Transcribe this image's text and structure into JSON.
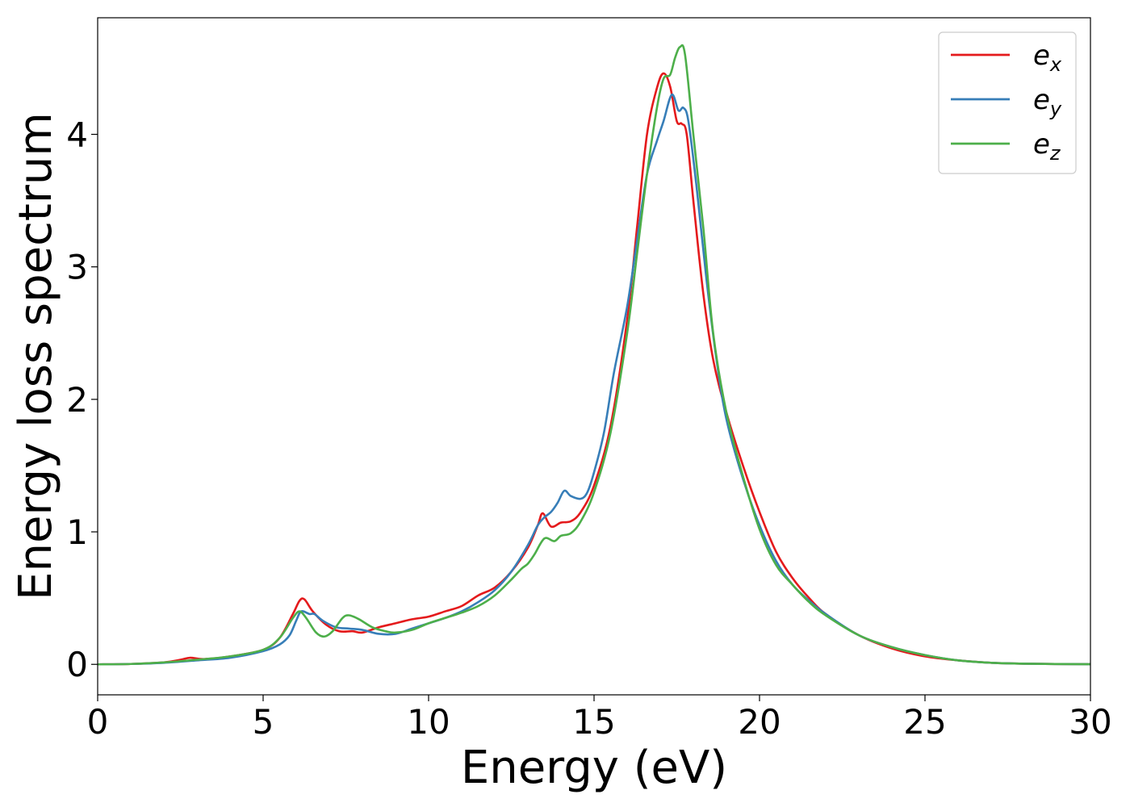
{
  "chart_data": {
    "type": "line",
    "xlabel": "Energy (eV)",
    "ylabel": "Energy loss spectrum",
    "xlim": [
      0,
      30
    ],
    "ylim": [
      -0.23,
      4.88
    ],
    "xticks": [
      0,
      5,
      10,
      15,
      20,
      25,
      30
    ],
    "xtick_labels": [
      "0",
      "5",
      "10",
      "15",
      "20",
      "25",
      "30"
    ],
    "yticks": [
      0,
      1,
      2,
      3,
      4
    ],
    "ytick_labels": [
      "0",
      "1",
      "2",
      "3",
      "4"
    ],
    "grid": false,
    "legend_position": "top-right",
    "series": [
      {
        "name": "e",
        "name_sub": "x",
        "color": "#e41a1c",
        "points": [
          [
            0,
            0
          ],
          [
            1,
            0.003
          ],
          [
            2,
            0.015
          ],
          [
            2.5,
            0.035
          ],
          [
            2.8,
            0.05
          ],
          [
            3.2,
            0.04
          ],
          [
            4,
            0.06
          ],
          [
            5,
            0.11
          ],
          [
            5.5,
            0.2
          ],
          [
            5.9,
            0.38
          ],
          [
            6.1,
            0.48
          ],
          [
            6.25,
            0.49
          ],
          [
            6.5,
            0.4
          ],
          [
            6.9,
            0.3
          ],
          [
            7.3,
            0.25
          ],
          [
            7.7,
            0.25
          ],
          [
            8,
            0.24
          ],
          [
            8.5,
            0.28
          ],
          [
            9,
            0.31
          ],
          [
            9.5,
            0.34
          ],
          [
            10,
            0.36
          ],
          [
            10.5,
            0.4
          ],
          [
            11,
            0.44
          ],
          [
            11.5,
            0.52
          ],
          [
            12,
            0.58
          ],
          [
            12.5,
            0.7
          ],
          [
            13,
            0.88
          ],
          [
            13.3,
            1.05
          ],
          [
            13.45,
            1.14
          ],
          [
            13.7,
            1.04
          ],
          [
            14,
            1.07
          ],
          [
            14.3,
            1.08
          ],
          [
            14.6,
            1.15
          ],
          [
            15,
            1.35
          ],
          [
            15.5,
            1.8
          ],
          [
            16,
            2.6
          ],
          [
            16.3,
            3.3
          ],
          [
            16.6,
            4.0
          ],
          [
            16.9,
            4.35
          ],
          [
            17.1,
            4.46
          ],
          [
            17.3,
            4.36
          ],
          [
            17.5,
            4.1
          ],
          [
            17.65,
            4.08
          ],
          [
            17.8,
            4.0
          ],
          [
            18,
            3.5
          ],
          [
            18.3,
            2.8
          ],
          [
            18.6,
            2.3
          ],
          [
            19,
            1.9
          ],
          [
            19.5,
            1.5
          ],
          [
            20,
            1.15
          ],
          [
            20.5,
            0.85
          ],
          [
            21,
            0.65
          ],
          [
            21.5,
            0.5
          ],
          [
            22,
            0.38
          ],
          [
            23,
            0.22
          ],
          [
            24,
            0.12
          ],
          [
            25,
            0.06
          ],
          [
            26,
            0.03
          ],
          [
            27,
            0.012
          ],
          [
            28,
            0.005
          ],
          [
            30,
            0.001
          ]
        ]
      },
      {
        "name": "e",
        "name_sub": "y",
        "color": "#377eb8",
        "points": [
          [
            0,
            0
          ],
          [
            1,
            0.003
          ],
          [
            2,
            0.012
          ],
          [
            3,
            0.03
          ],
          [
            4,
            0.05
          ],
          [
            5,
            0.1
          ],
          [
            5.5,
            0.15
          ],
          [
            5.8,
            0.22
          ],
          [
            6,
            0.33
          ],
          [
            6.15,
            0.4
          ],
          [
            6.4,
            0.38
          ],
          [
            6.55,
            0.38
          ],
          [
            6.8,
            0.33
          ],
          [
            7.2,
            0.28
          ],
          [
            7.6,
            0.27
          ],
          [
            8,
            0.26
          ],
          [
            8.5,
            0.23
          ],
          [
            9,
            0.23
          ],
          [
            9.5,
            0.27
          ],
          [
            10,
            0.31
          ],
          [
            10.5,
            0.35
          ],
          [
            11,
            0.4
          ],
          [
            11.5,
            0.47
          ],
          [
            12,
            0.56
          ],
          [
            12.5,
            0.7
          ],
          [
            13,
            0.9
          ],
          [
            13.3,
            1.05
          ],
          [
            13.5,
            1.11
          ],
          [
            13.7,
            1.15
          ],
          [
            13.9,
            1.22
          ],
          [
            14.1,
            1.31
          ],
          [
            14.3,
            1.27
          ],
          [
            14.6,
            1.25
          ],
          [
            14.8,
            1.3
          ],
          [
            15,
            1.45
          ],
          [
            15.3,
            1.75
          ],
          [
            15.6,
            2.2
          ],
          [
            16,
            2.7
          ],
          [
            16.3,
            3.2
          ],
          [
            16.6,
            3.7
          ],
          [
            16.9,
            3.95
          ],
          [
            17.1,
            4.1
          ],
          [
            17.35,
            4.3
          ],
          [
            17.55,
            4.18
          ],
          [
            17.7,
            4.2
          ],
          [
            17.85,
            4.1
          ],
          [
            18.1,
            3.6
          ],
          [
            18.4,
            2.9
          ],
          [
            18.7,
            2.3
          ],
          [
            19,
            1.85
          ],
          [
            19.5,
            1.4
          ],
          [
            20,
            1.05
          ],
          [
            20.5,
            0.78
          ],
          [
            21,
            0.6
          ],
          [
            21.5,
            0.48
          ],
          [
            22,
            0.38
          ],
          [
            23,
            0.22
          ],
          [
            24,
            0.13
          ],
          [
            25,
            0.07
          ],
          [
            26,
            0.03
          ],
          [
            27,
            0.012
          ],
          [
            28,
            0.005
          ],
          [
            30,
            0.001
          ]
        ]
      },
      {
        "name": "e",
        "name_sub": "z",
        "color": "#4daf4a",
        "points": [
          [
            0,
            0
          ],
          [
            1,
            0.003
          ],
          [
            2,
            0.015
          ],
          [
            3,
            0.035
          ],
          [
            4,
            0.06
          ],
          [
            5,
            0.11
          ],
          [
            5.5,
            0.2
          ],
          [
            5.9,
            0.35
          ],
          [
            6.1,
            0.4
          ],
          [
            6.3,
            0.35
          ],
          [
            6.6,
            0.24
          ],
          [
            6.85,
            0.21
          ],
          [
            7.1,
            0.25
          ],
          [
            7.4,
            0.35
          ],
          [
            7.6,
            0.37
          ],
          [
            7.9,
            0.34
          ],
          [
            8.3,
            0.28
          ],
          [
            8.7,
            0.25
          ],
          [
            9,
            0.24
          ],
          [
            9.5,
            0.26
          ],
          [
            10,
            0.31
          ],
          [
            10.5,
            0.35
          ],
          [
            11,
            0.39
          ],
          [
            11.5,
            0.44
          ],
          [
            12,
            0.52
          ],
          [
            12.5,
            0.64
          ],
          [
            12.8,
            0.72
          ],
          [
            13,
            0.76
          ],
          [
            13.2,
            0.83
          ],
          [
            13.5,
            0.95
          ],
          [
            13.8,
            0.93
          ],
          [
            14,
            0.97
          ],
          [
            14.3,
            0.99
          ],
          [
            14.6,
            1.08
          ],
          [
            15,
            1.3
          ],
          [
            15.5,
            1.75
          ],
          [
            16,
            2.5
          ],
          [
            16.3,
            3.1
          ],
          [
            16.6,
            3.7
          ],
          [
            16.9,
            4.2
          ],
          [
            17.1,
            4.42
          ],
          [
            17.3,
            4.45
          ],
          [
            17.45,
            4.58
          ],
          [
            17.6,
            4.66
          ],
          [
            17.75,
            4.6
          ],
          [
            18,
            4.0
          ],
          [
            18.3,
            3.3
          ],
          [
            18.6,
            2.5
          ],
          [
            19,
            1.9
          ],
          [
            19.5,
            1.42
          ],
          [
            20,
            1.02
          ],
          [
            20.5,
            0.75
          ],
          [
            21,
            0.6
          ],
          [
            21.5,
            0.47
          ],
          [
            22,
            0.37
          ],
          [
            23,
            0.22
          ],
          [
            24,
            0.13
          ],
          [
            25,
            0.07
          ],
          [
            26,
            0.03
          ],
          [
            27,
            0.012
          ],
          [
            28,
            0.005
          ],
          [
            30,
            0.001
          ]
        ]
      }
    ]
  }
}
